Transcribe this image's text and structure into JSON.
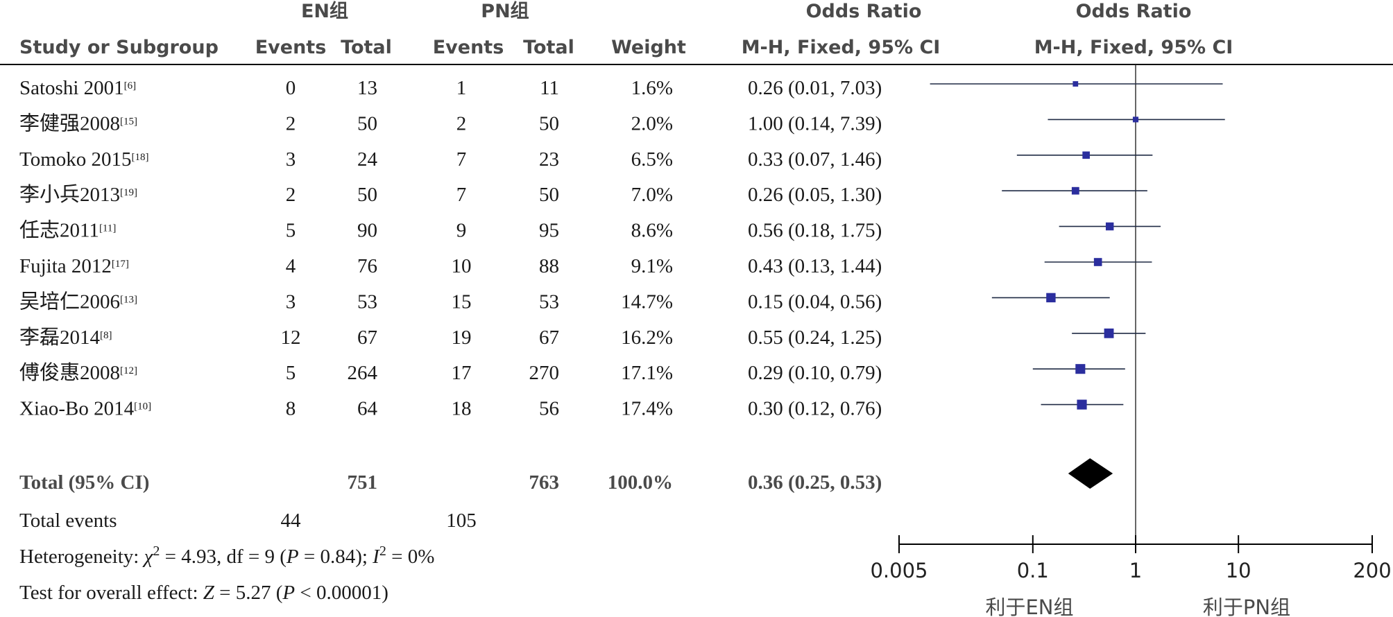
{
  "header": {
    "group1": "EN组",
    "group2": "PN组",
    "study_col": "Study or Subgroup",
    "events": "Events",
    "total": "Total",
    "weight": "Weight",
    "or_title": "Odds Ratio",
    "or_method": "M-H, Fixed, 95% CI",
    "plot_title": "Odds Ratio",
    "plot_method": "M-H, Fixed, 95% CI"
  },
  "studies": [
    {
      "name": "Satoshi 2001",
      "ref": "[6]",
      "e1": "0",
      "t1": "13",
      "e2": "1",
      "t2": "11",
      "weight": "1.6%",
      "or_text": "0.26 (0.01, 7.03)"
    },
    {
      "name": "李健强2008",
      "ref": "[15]",
      "e1": "2",
      "t1": "50",
      "e2": "2",
      "t2": "50",
      "weight": "2.0%",
      "or_text": "1.00 (0.14, 7.39)"
    },
    {
      "name": "Tomoko 2015",
      "ref": "[18]",
      "e1": "3",
      "t1": "24",
      "e2": "7",
      "t2": "23",
      "weight": "6.5%",
      "or_text": "0.33 (0.07, 1.46)"
    },
    {
      "name": "李小兵2013",
      "ref": "[19]",
      "e1": "2",
      "t1": "50",
      "e2": "7",
      "t2": "50",
      "weight": "7.0%",
      "or_text": "0.26 (0.05, 1.30)"
    },
    {
      "name": "任志2011",
      "ref": "[11]",
      "e1": "5",
      "t1": "90",
      "e2": "9",
      "t2": "95",
      "weight": "8.6%",
      "or_text": "0.56 (0.18, 1.75)"
    },
    {
      "name": "Fujita 2012",
      "ref": "[17]",
      "e1": "4",
      "t1": "76",
      "e2": "10",
      "t2": "88",
      "weight": "9.1%",
      "or_text": "0.43 (0.13, 1.44)"
    },
    {
      "name": "吴培仁2006",
      "ref": "[13]",
      "e1": "3",
      "t1": "53",
      "e2": "15",
      "t2": "53",
      "weight": "14.7%",
      "or_text": "0.15 (0.04, 0.56)"
    },
    {
      "name": "李磊2014",
      "ref": "[8]",
      "e1": "12",
      "t1": "67",
      "e2": "19",
      "t2": "67",
      "weight": "16.2%",
      "or_text": "0.55 (0.24, 1.25)"
    },
    {
      "name": "傅俊惠2008",
      "ref": "[12]",
      "e1": "5",
      "t1": "264",
      "e2": "17",
      "t2": "270",
      "weight": "17.1%",
      "or_text": "0.29 (0.10, 0.79)"
    },
    {
      "name": "Xiao-Bo 2014",
      "ref": "[10]",
      "e1": "8",
      "t1": "64",
      "e2": "18",
      "t2": "56",
      "weight": "17.4%",
      "or_text": "0.30 (0.12, 0.76)"
    }
  ],
  "total": {
    "label": "Total (95% CI)",
    "t1": "751",
    "t2": "763",
    "weight": "100.0%",
    "or_text": "0.36 (0.25, 0.53)"
  },
  "total_events": {
    "label": "Total events",
    "e1": "44",
    "e2": "105"
  },
  "heterogeneity": {
    "prefix": "Heterogeneity: ",
    "chi": "χ",
    "chi_exp": "2",
    "chi_val": " = 4.93, df = 9 (",
    "p": "P",
    "p_val": " = 0.84); ",
    "i": "I",
    "i_exp": "2",
    "i_val": " = 0%"
  },
  "overall_effect": {
    "prefix": "Test for overall effect: ",
    "z": "Z",
    "z_val": " = 5.27 (",
    "p": "P",
    "p_val": " < 0.00001)"
  },
  "axis": {
    "ticks": [
      "0.005",
      "0.1",
      "1",
      "10",
      "200"
    ],
    "favours_left": "利于EN组",
    "favours_right": "利于PN组"
  },
  "colors": {
    "marker": "#2b2e9e",
    "ci_line": "#1f2a44",
    "diamond": "#000000",
    "text": "#1a1a1a",
    "header": "#4a4a4a"
  },
  "chart_data": {
    "type": "forest",
    "x_scale": "log",
    "xlim": [
      0.005,
      200
    ],
    "ticks": [
      0.005,
      0.1,
      1,
      10,
      200
    ],
    "points": [
      {
        "label": "Satoshi 2001",
        "or": 0.26,
        "lo": 0.01,
        "hi": 7.03,
        "weight": 1.6
      },
      {
        "label": "李健强2008",
        "or": 1.0,
        "lo": 0.14,
        "hi": 7.39,
        "weight": 2.0
      },
      {
        "label": "Tomoko 2015",
        "or": 0.33,
        "lo": 0.07,
        "hi": 1.46,
        "weight": 6.5
      },
      {
        "label": "李小兵2013",
        "or": 0.26,
        "lo": 0.05,
        "hi": 1.3,
        "weight": 7.0
      },
      {
        "label": "任志2011",
        "or": 0.56,
        "lo": 0.18,
        "hi": 1.75,
        "weight": 8.6
      },
      {
        "label": "Fujita 2012",
        "or": 0.43,
        "lo": 0.13,
        "hi": 1.44,
        "weight": 9.1
      },
      {
        "label": "吴培仁2006",
        "or": 0.15,
        "lo": 0.04,
        "hi": 0.56,
        "weight": 14.7
      },
      {
        "label": "李磊2014",
        "or": 0.55,
        "lo": 0.24,
        "hi": 1.25,
        "weight": 16.2
      },
      {
        "label": "傅俊惠2008",
        "or": 0.29,
        "lo": 0.1,
        "hi": 0.79,
        "weight": 17.1
      },
      {
        "label": "Xiao-Bo 2014",
        "or": 0.3,
        "lo": 0.12,
        "hi": 0.76,
        "weight": 17.4
      }
    ],
    "pooled": {
      "label": "Total (95% CI)",
      "or": 0.36,
      "lo": 0.25,
      "hi": 0.53
    }
  }
}
